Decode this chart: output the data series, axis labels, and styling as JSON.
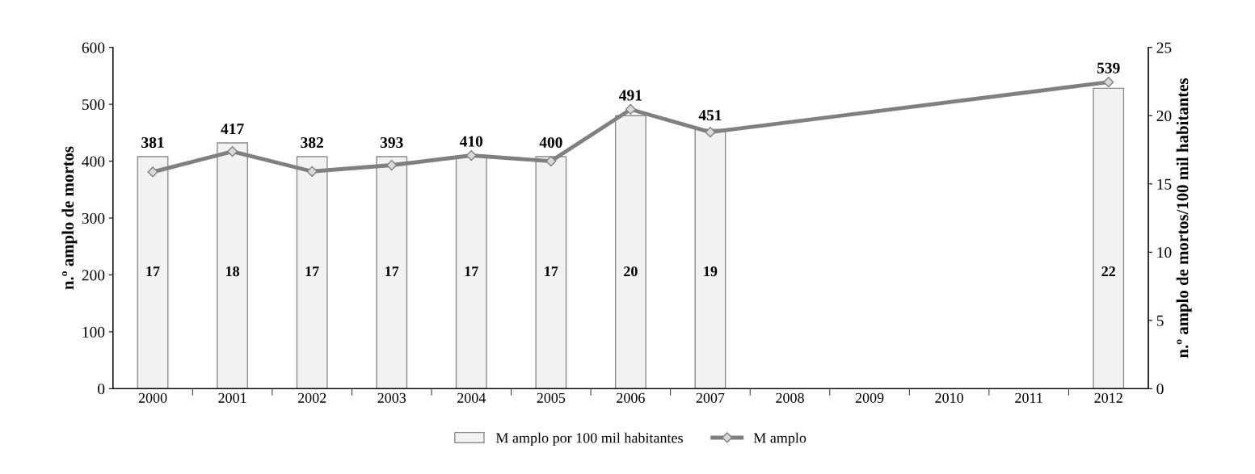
{
  "chart_data": {
    "type": "bar",
    "ylabel": "n.º amplo de mortos",
    "y2label": "n.º amplo de mortos/100 mil habitantes",
    "categories": [
      "2000",
      "2001",
      "2002",
      "2003",
      "2004",
      "2005",
      "2006",
      "2007",
      "2008",
      "2009",
      "2010",
      "2011",
      "2012"
    ],
    "series": [
      {
        "name": "M amplo por 100 mil habitantes",
        "axis": "y2",
        "color": "#f2f2f2",
        "values": [
          17,
          18,
          17,
          17,
          17,
          17,
          20,
          19,
          null,
          null,
          null,
          null,
          22
        ]
      },
      {
        "name": "M amplo",
        "type": "line",
        "axis": "y",
        "color": "#808080",
        "values": [
          381,
          417,
          382,
          393,
          410,
          400,
          491,
          451,
          null,
          null,
          null,
          null,
          539
        ]
      }
    ],
    "ylim": [
      0,
      600
    ],
    "yticks": [
      0,
      100,
      200,
      300,
      400,
      500,
      600
    ],
    "y2lim": [
      0,
      25
    ],
    "y2ticks": [
      0,
      5,
      10,
      15,
      20,
      25
    ],
    "data_labels": true,
    "legend": "bottom",
    "grid": false,
    "marker": "diamond",
    "line_style": "solid"
  }
}
